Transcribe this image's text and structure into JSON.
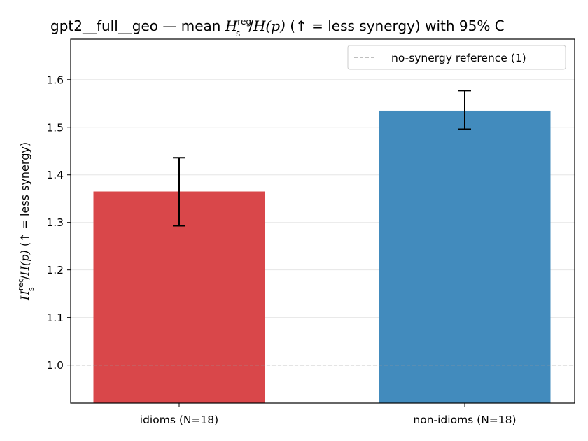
{
  "chart_data": {
    "type": "bar",
    "title_parts": {
      "prefix": "gpt2__full__geo — mean ",
      "H": "H",
      "sub": "s",
      "sup": "reg",
      "mid": "/",
      "Hp": "H",
      "paren": "(p)",
      "suffix": "  (↑ = less synergy) with 95% C"
    },
    "ylabel_parts": {
      "H": "H",
      "sub": "s",
      "sup": "reg",
      "mid": "/",
      "Hp": "H",
      "paren": "(p)",
      "suffix": "  (↑ = less synergy)"
    },
    "categories": [
      "idioms (N=18)",
      "non-idioms (N=18)"
    ],
    "values": [
      1.365,
      1.535
    ],
    "ci_low": [
      1.293,
      1.496
    ],
    "ci_high": [
      1.436,
      1.577
    ],
    "colors": [
      "#d9474a",
      "#428bbd"
    ],
    "ylim": [
      0.92,
      1.685
    ],
    "yticks": [
      "1.0",
      "1.1",
      "1.2",
      "1.3",
      "1.4",
      "1.5",
      "1.6"
    ],
    "ytick_values": [
      1.0,
      1.1,
      1.2,
      1.3,
      1.4,
      1.5,
      1.6
    ],
    "reference": {
      "value": 1.0,
      "label": "no-synergy reference (1)",
      "color": "#999999"
    },
    "grid": "y",
    "legend_position": "top-right"
  }
}
